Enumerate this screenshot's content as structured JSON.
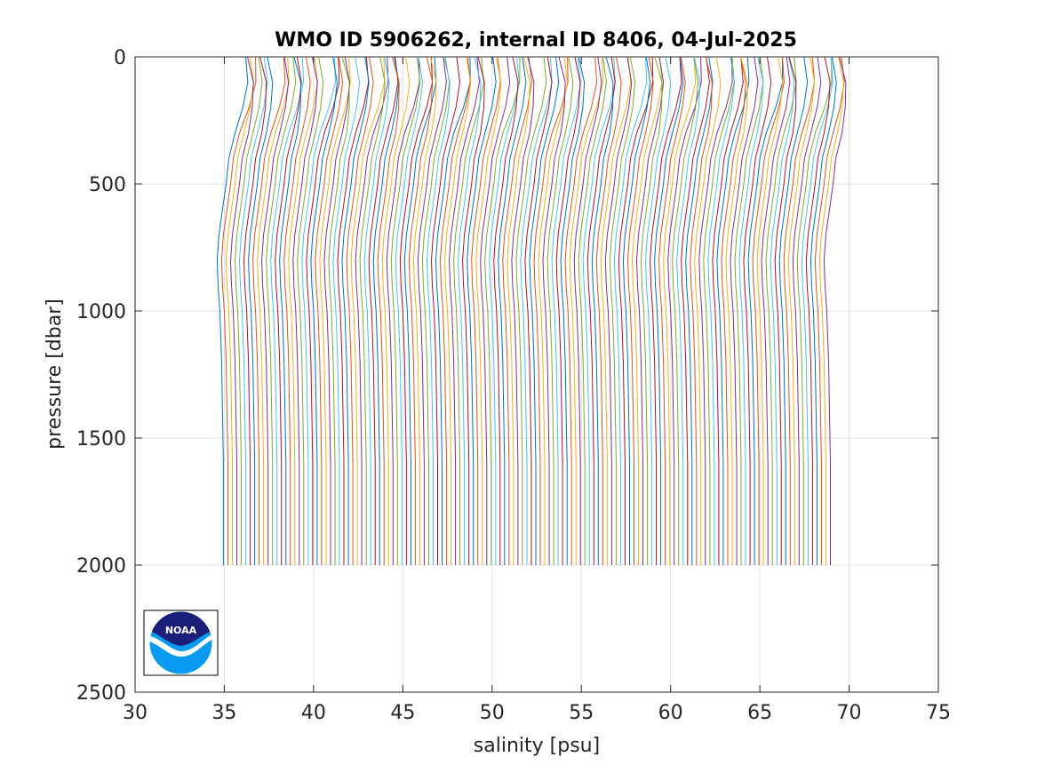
{
  "chart_data": {
    "type": "line",
    "title": "WMO ID 5906262, internal ID 8406, 04-Jul-2025",
    "xlabel": "salinity [psu]",
    "ylabel": "pressure [dbar]",
    "xlim": [
      30,
      75
    ],
    "ylim": [
      0,
      2500
    ],
    "y_reversed": true,
    "grid": true,
    "x_ticks": [
      "30",
      "35",
      "40",
      "45",
      "50",
      "55",
      "60",
      "65",
      "70",
      "75"
    ],
    "y_ticks": [
      "0",
      "500",
      "1000",
      "1500",
      "2000",
      "2500"
    ],
    "profile_layout": "waterfall",
    "profile_count": 137,
    "profile_offset_psu": 0.25,
    "first_profile_deep_salinity": 34.9,
    "max_pressure": 2000,
    "profile_shape": {
      "pressure": [
        0,
        50,
        100,
        200,
        300,
        400,
        500,
        600,
        700,
        800,
        900,
        1000,
        1200,
        1400,
        1600,
        1800,
        2000
      ],
      "salinity_anomaly": [
        1.05,
        1.15,
        1.25,
        1.05,
        0.7,
        0.35,
        0.2,
        0.0,
        -0.2,
        -0.3,
        -0.25,
        -0.15,
        -0.05,
        0.0,
        0.05,
        0.05,
        0.05
      ]
    },
    "series_colors": [
      "#0072BD",
      "#D95319",
      "#EDB120",
      "#7E2F8E",
      "#77AC30",
      "#4DBEEE",
      "#A2142F"
    ]
  },
  "logo": {
    "name": "NOAA",
    "text": "NOAA",
    "colors": {
      "navy": "#1a1f7a",
      "sky": "#0a9af0"
    }
  }
}
